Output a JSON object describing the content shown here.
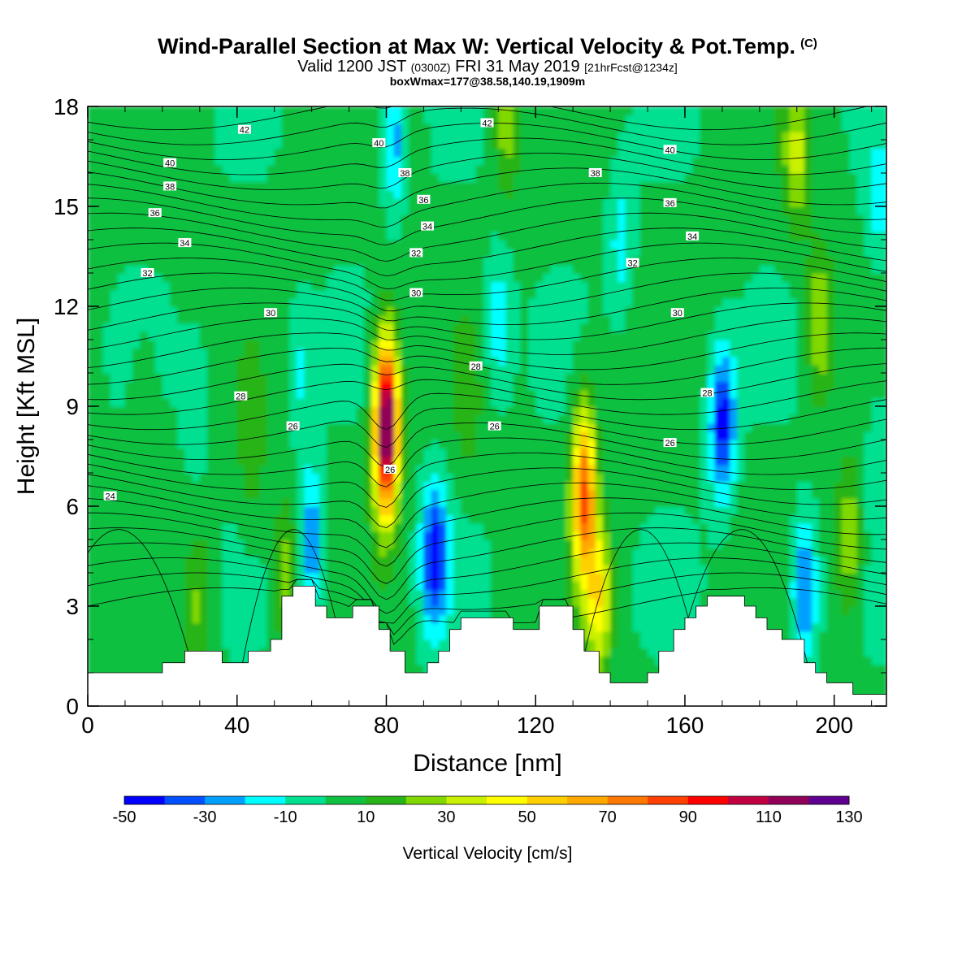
{
  "header": {
    "title": "Wind-Parallel Section at Max W: Vertical Velocity & Pot.Temp.",
    "copyright": "(C)",
    "valid_prefix": "Valid 1200 JST",
    "valid_zulu": "(0300Z)",
    "valid_date": "FRI 31 May 2019",
    "forecast": "[21hrFcst@1234z]",
    "box_info": "boxWmax=177@38.58,140.19,1909m"
  },
  "chart_data": {
    "type": "heatmap",
    "xlabel": "Distance [nm]",
    "ylabel": "Height [Kft MSL]",
    "xlim": [
      0,
      214
    ],
    "ylim": [
      0,
      18
    ],
    "xticks": [
      0,
      40,
      80,
      120,
      160,
      200
    ],
    "yticks": [
      0,
      3,
      6,
      9,
      12,
      15,
      18
    ],
    "colorbar": {
      "label": "Vertical Velocity [cm/s]",
      "levels": [
        -50,
        -40,
        -30,
        -20,
        -10,
        0,
        10,
        20,
        30,
        40,
        50,
        60,
        70,
        80,
        90,
        100,
        110,
        120,
        130
      ],
      "tick_labels": [
        -50,
        -30,
        -10,
        10,
        30,
        50,
        70,
        90,
        110,
        130
      ],
      "colors": [
        "#0000ff",
        "#0050ff",
        "#00a0ff",
        "#00ffff",
        "#00e090",
        "#10c040",
        "#28b418",
        "#80d800",
        "#c8f000",
        "#ffff00",
        "#ffd000",
        "#ffa800",
        "#ff7800",
        "#ff4000",
        "#ff0000",
        "#c00040",
        "#900058",
        "#600090"
      ]
    },
    "updrafts": [
      {
        "x": 80,
        "z": 8.4,
        "w": 130
      },
      {
        "x": 133,
        "z": 6.4,
        "w": 78
      },
      {
        "x": 137,
        "z": 3.2,
        "w": 42
      },
      {
        "x": 53,
        "z": 4.0,
        "w": 25
      },
      {
        "x": 44,
        "z": 7.5,
        "w": 15
      },
      {
        "x": 15,
        "z": 9.0,
        "w": 8
      },
      {
        "x": 102,
        "z": 9.0,
        "w": 10
      },
      {
        "x": 85,
        "z": 17.0,
        "w": 18
      },
      {
        "x": 196,
        "z": 11.5,
        "w": 30
      },
      {
        "x": 190,
        "z": 16.5,
        "w": 28
      },
      {
        "x": 204,
        "z": 5.0,
        "w": 28
      },
      {
        "x": 112,
        "z": 17.5,
        "w": 22
      },
      {
        "x": 30,
        "z": 3.0,
        "w": 20
      }
    ],
    "downdrafts": [
      {
        "x": 93,
        "z": 4.5,
        "w": -48
      },
      {
        "x": 170,
        "z": 8.5,
        "w": -50
      },
      {
        "x": 60,
        "z": 5.0,
        "w": -33
      },
      {
        "x": 192,
        "z": 3.5,
        "w": -38
      },
      {
        "x": 83,
        "z": 17.0,
        "w": -38
      },
      {
        "x": 110,
        "z": 11.5,
        "w": -22
      },
      {
        "x": 143,
        "z": 14.0,
        "w": -18
      },
      {
        "x": 57,
        "z": 10.0,
        "w": -14
      },
      {
        "x": 29,
        "z": 9.0,
        "w": -12
      },
      {
        "x": 212,
        "z": 15.0,
        "w": -16
      },
      {
        "x": 212,
        "z": 7.5,
        "w": -14
      }
    ],
    "terrain": [
      {
        "x": 0,
        "z": 1.0
      },
      {
        "x": 20,
        "z": 1.0
      },
      {
        "x": 20,
        "z": 1.3
      },
      {
        "x": 26,
        "z": 1.3
      },
      {
        "x": 26,
        "z": 1.65
      },
      {
        "x": 36,
        "z": 1.65
      },
      {
        "x": 36,
        "z": 1.3
      },
      {
        "x": 43,
        "z": 1.3
      },
      {
        "x": 43,
        "z": 1.65
      },
      {
        "x": 49,
        "z": 1.65
      },
      {
        "x": 49,
        "z": 2.0
      },
      {
        "x": 52,
        "z": 2.0
      },
      {
        "x": 52,
        "z": 3.3
      },
      {
        "x": 55,
        "z": 3.3
      },
      {
        "x": 55,
        "z": 3.6
      },
      {
        "x": 61,
        "z": 3.6
      },
      {
        "x": 61,
        "z": 3.0
      },
      {
        "x": 64,
        "z": 3.0
      },
      {
        "x": 64,
        "z": 2.65
      },
      {
        "x": 71,
        "z": 2.65
      },
      {
        "x": 71,
        "z": 3.0
      },
      {
        "x": 78,
        "z": 3.0
      },
      {
        "x": 78,
        "z": 2.3
      },
      {
        "x": 81,
        "z": 2.3
      },
      {
        "x": 81,
        "z": 1.65
      },
      {
        "x": 85,
        "z": 1.65
      },
      {
        "x": 85,
        "z": 1.0
      },
      {
        "x": 91,
        "z": 1.0
      },
      {
        "x": 91,
        "z": 1.3
      },
      {
        "x": 94,
        "z": 1.3
      },
      {
        "x": 94,
        "z": 1.65
      },
      {
        "x": 97,
        "z": 1.65
      },
      {
        "x": 97,
        "z": 2.3
      },
      {
        "x": 100,
        "z": 2.3
      },
      {
        "x": 100,
        "z": 2.65
      },
      {
        "x": 114,
        "z": 2.65
      },
      {
        "x": 114,
        "z": 2.3
      },
      {
        "x": 121,
        "z": 2.3
      },
      {
        "x": 121,
        "z": 3.0
      },
      {
        "x": 130,
        "z": 3.0
      },
      {
        "x": 130,
        "z": 2.3
      },
      {
        "x": 133,
        "z": 2.3
      },
      {
        "x": 133,
        "z": 1.65
      },
      {
        "x": 137,
        "z": 1.65
      },
      {
        "x": 137,
        "z": 1.0
      },
      {
        "x": 140,
        "z": 1.0
      },
      {
        "x": 140,
        "z": 0.7
      },
      {
        "x": 150,
        "z": 0.7
      },
      {
        "x": 150,
        "z": 1.0
      },
      {
        "x": 153,
        "z": 1.0
      },
      {
        "x": 153,
        "z": 1.65
      },
      {
        "x": 157,
        "z": 1.65
      },
      {
        "x": 157,
        "z": 2.3
      },
      {
        "x": 160,
        "z": 2.3
      },
      {
        "x": 160,
        "z": 2.65
      },
      {
        "x": 163,
        "z": 2.65
      },
      {
        "x": 163,
        "z": 3.0
      },
      {
        "x": 166,
        "z": 3.0
      },
      {
        "x": 166,
        "z": 3.3
      },
      {
        "x": 176,
        "z": 3.3
      },
      {
        "x": 176,
        "z": 3.0
      },
      {
        "x": 179,
        "z": 3.0
      },
      {
        "x": 179,
        "z": 2.65
      },
      {
        "x": 182,
        "z": 2.65
      },
      {
        "x": 182,
        "z": 2.3
      },
      {
        "x": 186,
        "z": 2.3
      },
      {
        "x": 186,
        "z": 2.0
      },
      {
        "x": 192,
        "z": 2.0
      },
      {
        "x": 192,
        "z": 1.3
      },
      {
        "x": 195,
        "z": 1.3
      },
      {
        "x": 195,
        "z": 1.0
      },
      {
        "x": 198,
        "z": 1.0
      },
      {
        "x": 198,
        "z": 0.7
      },
      {
        "x": 205,
        "z": 0.7
      },
      {
        "x": 205,
        "z": 0.35
      },
      {
        "x": 214,
        "z": 0.35
      }
    ],
    "theta_contour_labels": [
      {
        "text": "42",
        "x": 42,
        "z": 17.3
      },
      {
        "text": "42",
        "x": 107,
        "z": 17.5
      },
      {
        "text": "40",
        "x": 22,
        "z": 16.3
      },
      {
        "text": "40",
        "x": 78,
        "z": 16.9
      },
      {
        "text": "40",
        "x": 156,
        "z": 16.7
      },
      {
        "text": "38",
        "x": 22,
        "z": 15.6
      },
      {
        "text": "38",
        "x": 85,
        "z": 16.0
      },
      {
        "text": "38",
        "x": 136,
        "z": 16.0
      },
      {
        "text": "36",
        "x": 18,
        "z": 14.8
      },
      {
        "text": "36",
        "x": 90,
        "z": 15.2
      },
      {
        "text": "36",
        "x": 156,
        "z": 15.1
      },
      {
        "text": "34",
        "x": 26,
        "z": 13.9
      },
      {
        "text": "34",
        "x": 91,
        "z": 14.4
      },
      {
        "text": "34",
        "x": 162,
        "z": 14.1
      },
      {
        "text": "32",
        "x": 16,
        "z": 13.0
      },
      {
        "text": "32",
        "x": 88,
        "z": 13.6
      },
      {
        "text": "32",
        "x": 146,
        "z": 13.3
      },
      {
        "text": "30",
        "x": 49,
        "z": 11.8
      },
      {
        "text": "30",
        "x": 88,
        "z": 12.4
      },
      {
        "text": "30",
        "x": 158,
        "z": 11.8
      },
      {
        "text": "28",
        "x": 41,
        "z": 9.3
      },
      {
        "text": "28",
        "x": 104,
        "z": 10.2
      },
      {
        "text": "28",
        "x": 166,
        "z": 9.4
      },
      {
        "text": "26",
        "x": 55,
        "z": 8.4
      },
      {
        "text": "26",
        "x": 109,
        "z": 8.4
      },
      {
        "text": "26",
        "x": 156,
        "z": 7.9
      },
      {
        "text": "26",
        "x": 81,
        "z": 7.1
      },
      {
        "text": "24",
        "x": 6,
        "z": 6.3
      }
    ]
  }
}
